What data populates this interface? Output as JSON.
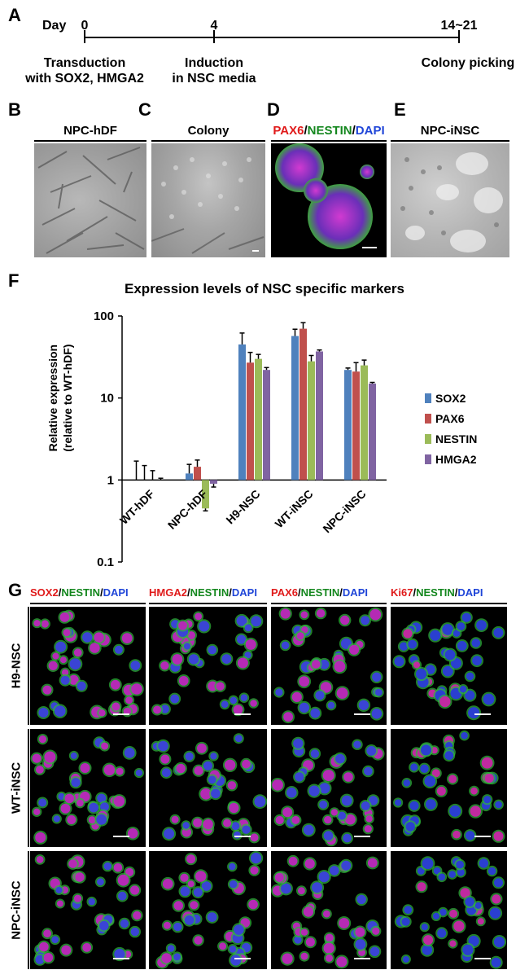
{
  "panels": {
    "A": "A",
    "B": "B",
    "C": "C",
    "D": "D",
    "E": "E",
    "F": "F",
    "G": "G"
  },
  "timeline": {
    "day_label": "Day",
    "ticks": [
      {
        "day": "0",
        "text1": "Transduction",
        "text2": "with SOX2, HMGA2"
      },
      {
        "day": "4",
        "text1": "Induction",
        "text2": "in NSC media"
      },
      {
        "day": "14~21",
        "text1": "Colony picking",
        "text2": ""
      }
    ]
  },
  "row1": {
    "B": {
      "title": "NPC-hDF"
    },
    "C": {
      "title": "Colony"
    },
    "D": {
      "title_parts": [
        "PAX6",
        "/",
        "NESTIN",
        "/",
        "DAPI"
      ]
    },
    "E": {
      "title": "NPC-iNSC"
    }
  },
  "chart_data": {
    "type": "bar",
    "title": "Expression levels of NSC specific markers",
    "ylabel_line1": "Relative expression",
    "ylabel_line2": "(relative to WT-hDF)",
    "yscale": "log",
    "ylim": [
      0.1,
      100
    ],
    "yticks": [
      "100",
      "10",
      "1",
      "0.1"
    ],
    "categories": [
      "WT-hDF",
      "NPC-hDF",
      "H9-NSC",
      "WT-iNSC",
      "NPC-iNSC"
    ],
    "series": [
      {
        "name": "SOX2",
        "color": "#4f81bd",
        "values": [
          1.0,
          1.2,
          45,
          57,
          22
        ],
        "errors": [
          0.7,
          0.35,
          17,
          12,
          1.2
        ]
      },
      {
        "name": "PAX6",
        "color": "#c0504d",
        "values": [
          1.0,
          1.45,
          27,
          70,
          21
        ],
        "errors": [
          0.5,
          0.3,
          9,
          13,
          6
        ]
      },
      {
        "name": "NESTIN",
        "color": "#9bbb59",
        "values": [
          1.0,
          0.45,
          30,
          28,
          25
        ],
        "errors": [
          0.3,
          0.03,
          4,
          5,
          4
        ]
      },
      {
        "name": "HMGA2",
        "color": "#8064a2",
        "values": [
          1.0,
          0.9,
          22,
          37,
          15
        ],
        "errors": [
          0.05,
          0.08,
          1.5,
          1.5,
          0.5
        ]
      }
    ]
  },
  "gridG": {
    "columns": [
      {
        "parts": [
          {
            "t": "SOX2",
            "c": "red"
          },
          {
            "t": "/",
            "c": "blk"
          },
          {
            "t": "NESTIN",
            "c": "grn"
          },
          {
            "t": "/",
            "c": "blk"
          },
          {
            "t": "DAPI",
            "c": "blu"
          }
        ]
      },
      {
        "parts": [
          {
            "t": "HMGA2",
            "c": "red"
          },
          {
            "t": "/",
            "c": "blk"
          },
          {
            "t": "NESTIN",
            "c": "grn"
          },
          {
            "t": "/",
            "c": "blk"
          },
          {
            "t": "DAPI",
            "c": "blu"
          }
        ]
      },
      {
        "parts": [
          {
            "t": "PAX6",
            "c": "red"
          },
          {
            "t": "/",
            "c": "blk"
          },
          {
            "t": "NESTIN",
            "c": "grn"
          },
          {
            "t": "/",
            "c": "blk"
          },
          {
            "t": "DAPI",
            "c": "blu"
          }
        ]
      },
      {
        "parts": [
          {
            "t": "Ki67",
            "c": "red"
          },
          {
            "t": "/",
            "c": "blk"
          },
          {
            "t": "NESTIN",
            "c": "grn"
          },
          {
            "t": "/",
            "c": "blk"
          },
          {
            "t": "DAPI",
            "c": "blu"
          }
        ]
      }
    ],
    "rows": [
      "H9-NSC",
      "WT-iNSC",
      "NPC-iNSC"
    ]
  }
}
